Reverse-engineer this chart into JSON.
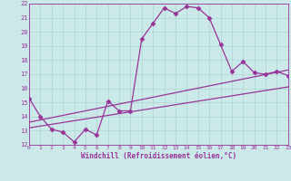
{
  "xlabel": "Windchill (Refroidissement éolien,°C)",
  "xlim": [
    0,
    23
  ],
  "ylim": [
    12,
    22
  ],
  "xticks": [
    0,
    1,
    2,
    3,
    4,
    5,
    6,
    7,
    8,
    9,
    10,
    11,
    12,
    13,
    14,
    15,
    16,
    17,
    18,
    19,
    20,
    21,
    22,
    23
  ],
  "yticks": [
    12,
    13,
    14,
    15,
    16,
    17,
    18,
    19,
    20,
    21,
    22
  ],
  "bg_color": "#cce9e9",
  "grid_color": "#aad4d4",
  "line_color": "#993399",
  "line1_x": [
    0,
    1,
    2,
    3,
    4,
    5,
    6,
    7,
    8,
    9,
    10,
    11,
    12,
    13,
    14,
    15,
    16,
    17,
    18,
    19,
    20,
    21,
    22,
    23
  ],
  "line1_y": [
    15.3,
    14.0,
    13.1,
    12.9,
    12.2,
    13.1,
    12.7,
    15.1,
    14.4,
    14.4,
    19.5,
    20.6,
    21.7,
    21.3,
    21.8,
    21.7,
    21.0,
    19.1,
    17.2,
    17.9,
    17.1,
    17.0,
    17.2,
    16.9
  ],
  "line2_x": [
    0,
    23
  ],
  "line2_y": [
    13.2,
    16.1
  ],
  "line3_x": [
    0,
    23
  ],
  "line3_y": [
    13.6,
    17.3
  ],
  "marker": "D",
  "markersize": 2.5,
  "linewidth": 0.9
}
